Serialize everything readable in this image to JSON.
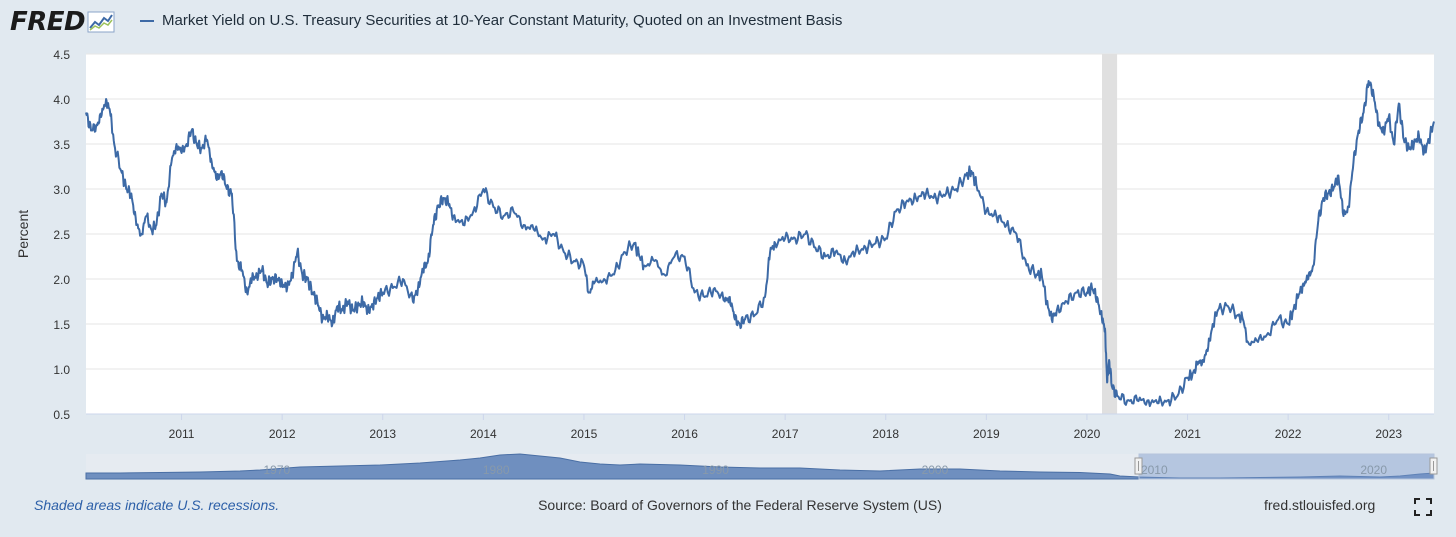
{
  "logo": {
    "text": "FRED",
    "icon": "fred-chart-icon"
  },
  "legend": {
    "label": "Market Yield on U.S. Treasury Securities at 10-Year Constant Maturity, Quoted on an Investment Basis",
    "color": "#3d6aa6"
  },
  "chart_data": {
    "type": "line",
    "title": "Market Yield on U.S. Treasury Securities at 10-Year Constant Maturity, Quoted on an Investment Basis",
    "xlabel": "",
    "ylabel": "Percent",
    "xlim": [
      2010.05,
      2023.45
    ],
    "ylim": [
      0.5,
      4.5
    ],
    "yticks": [
      "0.5",
      "1.0",
      "1.5",
      "2.0",
      "2.5",
      "3.0",
      "3.5",
      "4.0",
      "4.5"
    ],
    "xticks": [
      "2011",
      "2012",
      "2013",
      "2014",
      "2015",
      "2016",
      "2017",
      "2018",
      "2019",
      "2020",
      "2021",
      "2022",
      "2023"
    ],
    "recession": {
      "start": 2020.15,
      "end": 2020.3
    },
    "series": [
      {
        "name": "DGS10",
        "color": "#3d6aa6",
        "x": [
          2010.05,
          2010.1,
          2010.15,
          2010.2,
          2010.25,
          2010.29,
          2010.33,
          2010.4,
          2010.45,
          2010.5,
          2010.55,
          2010.6,
          2010.65,
          2010.7,
          2010.75,
          2010.8,
          2010.85,
          2010.9,
          2010.95,
          2011.0,
          2011.05,
          2011.1,
          2011.15,
          2011.2,
          2011.25,
          2011.3,
          2011.35,
          2011.4,
          2011.45,
          2011.5,
          2011.55,
          2011.6,
          2011.65,
          2011.7,
          2011.75,
          2011.8,
          2011.85,
          2011.9,
          2011.95,
          2012.0,
          2012.05,
          2012.1,
          2012.15,
          2012.2,
          2012.25,
          2012.3,
          2012.35,
          2012.4,
          2012.45,
          2012.5,
          2012.55,
          2012.6,
          2012.65,
          2012.7,
          2012.75,
          2012.8,
          2012.85,
          2012.9,
          2012.95,
          2013.0,
          2013.1,
          2013.2,
          2013.3,
          2013.35,
          2013.4,
          2013.45,
          2013.5,
          2013.55,
          2013.6,
          2013.65,
          2013.7,
          2013.8,
          2013.9,
          2014.0,
          2014.1,
          2014.2,
          2014.3,
          2014.4,
          2014.5,
          2014.6,
          2014.7,
          2014.8,
          2014.9,
          2015.0,
          2015.05,
          2015.1,
          2015.2,
          2015.3,
          2015.4,
          2015.5,
          2015.55,
          2015.6,
          2015.7,
          2015.8,
          2015.9,
          2016.0,
          2016.1,
          2016.2,
          2016.3,
          2016.4,
          2016.45,
          2016.5,
          2016.55,
          2016.6,
          2016.7,
          2016.8,
          2016.85,
          2016.9,
          2017.0,
          2017.1,
          2017.2,
          2017.3,
          2017.4,
          2017.5,
          2017.6,
          2017.7,
          2017.8,
          2017.9,
          2018.0,
          2018.1,
          2018.2,
          2018.3,
          2018.4,
          2018.5,
          2018.6,
          2018.7,
          2018.8,
          2018.85,
          2018.9,
          2019.0,
          2019.1,
          2019.2,
          2019.3,
          2019.4,
          2019.5,
          2019.55,
          2019.6,
          2019.65,
          2019.7,
          2019.8,
          2019.9,
          2020.0,
          2020.05,
          2020.1,
          2020.15,
          2020.18,
          2020.2,
          2020.22,
          2020.25,
          2020.3,
          2020.4,
          2020.5,
          2020.6,
          2020.7,
          2020.8,
          2020.9,
          2021.0,
          2021.05,
          2021.1,
          2021.15,
          2021.2,
          2021.25,
          2021.3,
          2021.4,
          2021.5,
          2021.55,
          2021.6,
          2021.7,
          2021.8,
          2021.9,
          2022.0,
          2022.05,
          2022.1,
          2022.15,
          2022.2,
          2022.25,
          2022.3,
          2022.35,
          2022.4,
          2022.45,
          2022.5,
          2022.55,
          2022.6,
          2022.65,
          2022.7,
          2022.75,
          2022.8,
          2022.85,
          2022.9,
          2022.95,
          2023.0,
          2023.05,
          2023.1,
          2023.15,
          2023.2,
          2023.25,
          2023.3,
          2023.35,
          2023.4,
          2023.45
        ],
        "values": [
          3.85,
          3.65,
          3.7,
          3.8,
          4.0,
          3.85,
          3.5,
          3.2,
          3.0,
          2.95,
          2.6,
          2.5,
          2.7,
          2.55,
          2.6,
          2.95,
          2.85,
          3.3,
          3.5,
          3.4,
          3.5,
          3.65,
          3.5,
          3.45,
          3.55,
          3.3,
          3.1,
          3.2,
          3.0,
          2.95,
          2.2,
          2.1,
          1.85,
          2.0,
          2.05,
          2.1,
          1.95,
          2.0,
          2.0,
          1.95,
          1.9,
          2.05,
          2.3,
          2.05,
          2.0,
          1.85,
          1.75,
          1.55,
          1.6,
          1.5,
          1.7,
          1.65,
          1.75,
          1.65,
          1.7,
          1.75,
          1.65,
          1.7,
          1.8,
          1.85,
          1.9,
          2.0,
          1.75,
          1.9,
          2.1,
          2.2,
          2.6,
          2.8,
          2.9,
          2.85,
          2.7,
          2.6,
          2.75,
          3.0,
          2.8,
          2.7,
          2.75,
          2.6,
          2.55,
          2.45,
          2.5,
          2.3,
          2.2,
          2.15,
          1.85,
          1.95,
          2.0,
          2.05,
          2.3,
          2.4,
          2.25,
          2.15,
          2.2,
          2.05,
          2.25,
          2.25,
          1.85,
          1.8,
          1.9,
          1.75,
          1.8,
          1.55,
          1.5,
          1.55,
          1.6,
          1.8,
          2.3,
          2.4,
          2.45,
          2.45,
          2.5,
          2.35,
          2.25,
          2.3,
          2.2,
          2.3,
          2.35,
          2.4,
          2.45,
          2.75,
          2.85,
          2.9,
          2.95,
          2.9,
          2.95,
          3.0,
          3.15,
          3.2,
          3.05,
          2.75,
          2.7,
          2.6,
          2.5,
          2.15,
          2.05,
          2.05,
          1.75,
          1.55,
          1.65,
          1.75,
          1.85,
          1.85,
          1.9,
          1.8,
          1.55,
          1.45,
          0.85,
          1.1,
          0.8,
          0.7,
          0.65,
          0.65,
          0.65,
          0.62,
          0.65,
          0.7,
          0.9,
          0.95,
          1.05,
          1.1,
          1.2,
          1.5,
          1.65,
          1.7,
          1.6,
          1.55,
          1.3,
          1.3,
          1.4,
          1.55,
          1.5,
          1.65,
          1.8,
          1.95,
          2.0,
          2.15,
          2.65,
          2.9,
          2.95,
          3.0,
          3.15,
          2.7,
          2.8,
          3.3,
          3.65,
          3.85,
          4.2,
          4.05,
          3.7,
          3.65,
          3.8,
          3.5,
          3.95,
          3.55,
          3.45,
          3.5,
          3.6,
          3.4,
          3.55,
          3.75
        ]
      }
    ]
  },
  "slider": {
    "labels": [
      "1970",
      "1980",
      "1990",
      "2000",
      "2010",
      "2020"
    ]
  },
  "footer": {
    "note": "Shaded areas indicate U.S. recessions.",
    "source": "Source: Board of Governors of the Federal Reserve System (US)",
    "url": "fred.stlouisfed.org"
  }
}
